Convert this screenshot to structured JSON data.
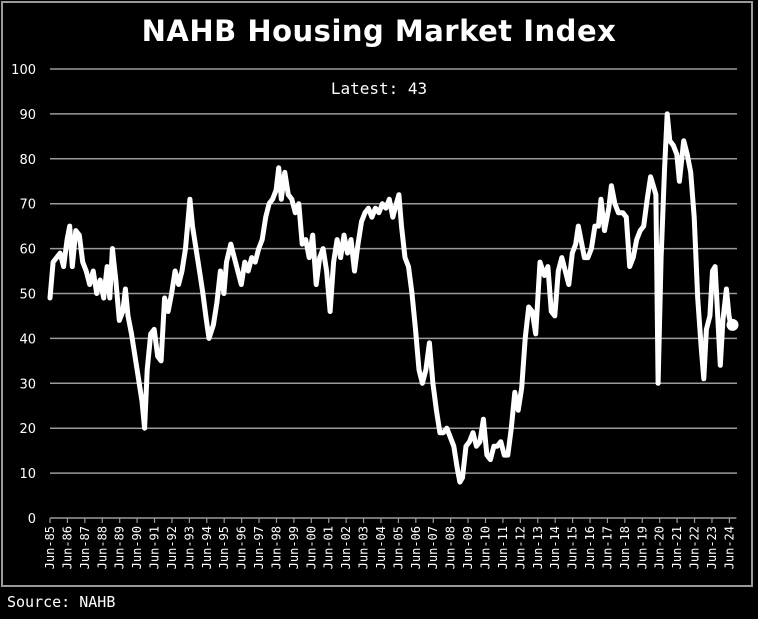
{
  "chart_data": {
    "type": "line",
    "title": "NAHB Housing Market Index",
    "subtitle": "Latest: 43",
    "source": "Source: NAHB",
    "xlabel": "",
    "ylabel": "",
    "ylim": [
      0,
      100
    ],
    "yticks": [
      0,
      10,
      20,
      30,
      40,
      50,
      60,
      70,
      80,
      90,
      100
    ],
    "grid": true,
    "legend": "none",
    "line_color": "#ffffff",
    "background": "#000000",
    "grid_color": "#9a9a9a",
    "xticks": [
      "Jun-85",
      "Jun-86",
      "Jun-87",
      "Jun-88",
      "Jun-89",
      "Jun-90",
      "Jun-91",
      "Jun-92",
      "Jun-93",
      "Jun-94",
      "Jun-95",
      "Jun-96",
      "Jun-97",
      "Jun-98",
      "Jun-99",
      "Jun-00",
      "Jun-01",
      "Jun-02",
      "Jun-03",
      "Jun-04",
      "Jun-05",
      "Jun-06",
      "Jun-07",
      "Jun-08",
      "Jun-09",
      "Jun-10",
      "Jun-11",
      "Jun-12",
      "Jun-13",
      "Jun-14",
      "Jun-15",
      "Jun-16",
      "Jun-17",
      "Jun-18",
      "Jun-19",
      "Jun-20",
      "Jun-21",
      "Jun-22",
      "Jun-23",
      "Jun-24"
    ],
    "x_start_year": 1985.42,
    "series": [
      {
        "name": "NAHB HMI",
        "points": [
          [
            1985.42,
            49
          ],
          [
            1985.6,
            57
          ],
          [
            1985.8,
            58
          ],
          [
            1986.0,
            59
          ],
          [
            1986.2,
            56
          ],
          [
            1986.4,
            62
          ],
          [
            1986.55,
            65
          ],
          [
            1986.7,
            56
          ],
          [
            1986.9,
            64
          ],
          [
            1987.1,
            63
          ],
          [
            1987.3,
            57
          ],
          [
            1987.5,
            55
          ],
          [
            1987.7,
            52
          ],
          [
            1987.9,
            55
          ],
          [
            1988.1,
            50
          ],
          [
            1988.3,
            53
          ],
          [
            1988.5,
            49
          ],
          [
            1988.7,
            56
          ],
          [
            1988.85,
            49
          ],
          [
            1989.0,
            60
          ],
          [
            1989.2,
            53
          ],
          [
            1989.4,
            44
          ],
          [
            1989.6,
            46
          ],
          [
            1989.75,
            51
          ],
          [
            1989.9,
            45
          ],
          [
            1990.1,
            41
          ],
          [
            1990.3,
            36
          ],
          [
            1990.5,
            31
          ],
          [
            1990.7,
            26
          ],
          [
            1990.85,
            20
          ],
          [
            1991.0,
            33
          ],
          [
            1991.2,
            41
          ],
          [
            1991.4,
            42
          ],
          [
            1991.6,
            36
          ],
          [
            1991.8,
            35
          ],
          [
            1992.0,
            49
          ],
          [
            1992.2,
            46
          ],
          [
            1992.4,
            50
          ],
          [
            1992.6,
            55
          ],
          [
            1992.8,
            52
          ],
          [
            1993.0,
            55
          ],
          [
            1993.2,
            60
          ],
          [
            1993.45,
            71
          ],
          [
            1993.6,
            65
          ],
          [
            1993.8,
            60
          ],
          [
            1994.0,
            55
          ],
          [
            1994.2,
            50
          ],
          [
            1994.4,
            44
          ],
          [
            1994.55,
            40
          ],
          [
            1994.8,
            43
          ],
          [
            1995.0,
            48
          ],
          [
            1995.2,
            55
          ],
          [
            1995.4,
            50
          ],
          [
            1995.55,
            57
          ],
          [
            1995.8,
            61
          ],
          [
            1996.0,
            58
          ],
          [
            1996.2,
            55
          ],
          [
            1996.4,
            52
          ],
          [
            1996.6,
            57
          ],
          [
            1996.8,
            55
          ],
          [
            1997.0,
            58
          ],
          [
            1997.2,
            57
          ],
          [
            1997.4,
            60
          ],
          [
            1997.6,
            62
          ],
          [
            1997.8,
            67
          ],
          [
            1998.0,
            70
          ],
          [
            1998.2,
            71
          ],
          [
            1998.4,
            73
          ],
          [
            1998.55,
            78
          ],
          [
            1998.7,
            71
          ],
          [
            1998.9,
            77
          ],
          [
            1999.1,
            72
          ],
          [
            1999.3,
            71
          ],
          [
            1999.5,
            68
          ],
          [
            1999.7,
            70
          ],
          [
            1999.9,
            61
          ],
          [
            2000.1,
            62
          ],
          [
            2000.3,
            58
          ],
          [
            2000.5,
            63
          ],
          [
            2000.7,
            52
          ],
          [
            2000.9,
            58
          ],
          [
            2001.1,
            60
          ],
          [
            2001.3,
            55
          ],
          [
            2001.5,
            46
          ],
          [
            2001.7,
            57
          ],
          [
            2001.9,
            62
          ],
          [
            2002.1,
            58
          ],
          [
            2002.3,
            63
          ],
          [
            2002.5,
            59
          ],
          [
            2002.7,
            62
          ],
          [
            2002.9,
            55
          ],
          [
            2003.1,
            61
          ],
          [
            2003.3,
            66
          ],
          [
            2003.5,
            68
          ],
          [
            2003.7,
            69
          ],
          [
            2003.9,
            67
          ],
          [
            2004.1,
            69
          ],
          [
            2004.3,
            68
          ],
          [
            2004.5,
            70
          ],
          [
            2004.7,
            69
          ],
          [
            2004.9,
            71
          ],
          [
            2005.1,
            67
          ],
          [
            2005.3,
            70
          ],
          [
            2005.45,
            72
          ],
          [
            2005.6,
            65
          ],
          [
            2005.8,
            58
          ],
          [
            2006.0,
            56
          ],
          [
            2006.2,
            50
          ],
          [
            2006.4,
            42
          ],
          [
            2006.6,
            33
          ],
          [
            2006.8,
            30
          ],
          [
            2007.0,
            33
          ],
          [
            2007.2,
            39
          ],
          [
            2007.4,
            30
          ],
          [
            2007.6,
            24
          ],
          [
            2007.8,
            19
          ],
          [
            2008.0,
            19
          ],
          [
            2008.2,
            20
          ],
          [
            2008.4,
            18
          ],
          [
            2008.6,
            16
          ],
          [
            2008.8,
            11
          ],
          [
            2008.95,
            8
          ],
          [
            2009.1,
            9
          ],
          [
            2009.3,
            16
          ],
          [
            2009.5,
            17
          ],
          [
            2009.7,
            19
          ],
          [
            2009.9,
            16
          ],
          [
            2010.1,
            17
          ],
          [
            2010.3,
            22
          ],
          [
            2010.5,
            14
          ],
          [
            2010.7,
            13
          ],
          [
            2010.9,
            16
          ],
          [
            2011.1,
            16
          ],
          [
            2011.3,
            17
          ],
          [
            2011.5,
            14
          ],
          [
            2011.7,
            14
          ],
          [
            2011.9,
            20
          ],
          [
            2012.1,
            28
          ],
          [
            2012.3,
            24
          ],
          [
            2012.5,
            29
          ],
          [
            2012.7,
            40
          ],
          [
            2012.9,
            47
          ],
          [
            2013.1,
            46
          ],
          [
            2013.3,
            41
          ],
          [
            2013.55,
            57
          ],
          [
            2013.8,
            54
          ],
          [
            2014.0,
            56
          ],
          [
            2014.2,
            46
          ],
          [
            2014.4,
            45
          ],
          [
            2014.6,
            55
          ],
          [
            2014.8,
            58
          ],
          [
            2015.0,
            55
          ],
          [
            2015.2,
            52
          ],
          [
            2015.4,
            59
          ],
          [
            2015.6,
            61
          ],
          [
            2015.75,
            65
          ],
          [
            2015.95,
            61
          ],
          [
            2016.1,
            58
          ],
          [
            2016.3,
            58
          ],
          [
            2016.5,
            60
          ],
          [
            2016.7,
            65
          ],
          [
            2016.9,
            65
          ],
          [
            2017.05,
            71
          ],
          [
            2017.25,
            64
          ],
          [
            2017.5,
            69
          ],
          [
            2017.65,
            74
          ],
          [
            2017.85,
            70
          ],
          [
            2018.05,
            68
          ],
          [
            2018.3,
            68
          ],
          [
            2018.5,
            67
          ],
          [
            2018.7,
            56
          ],
          [
            2018.9,
            58
          ],
          [
            2019.1,
            62
          ],
          [
            2019.3,
            64
          ],
          [
            2019.5,
            65
          ],
          [
            2019.7,
            71
          ],
          [
            2019.9,
            76
          ],
          [
            2020.05,
            74
          ],
          [
            2020.2,
            72
          ],
          [
            2020.33,
            30
          ],
          [
            2020.5,
            58
          ],
          [
            2020.7,
            78
          ],
          [
            2020.85,
            90
          ],
          [
            2021.0,
            84
          ],
          [
            2021.2,
            83
          ],
          [
            2021.4,
            81
          ],
          [
            2021.55,
            75
          ],
          [
            2021.8,
            84
          ],
          [
            2022.0,
            81
          ],
          [
            2022.2,
            77
          ],
          [
            2022.4,
            67
          ],
          [
            2022.6,
            49
          ],
          [
            2022.8,
            38
          ],
          [
            2022.95,
            31
          ],
          [
            2023.1,
            42
          ],
          [
            2023.3,
            45
          ],
          [
            2023.45,
            55
          ],
          [
            2023.6,
            56
          ],
          [
            2023.75,
            45
          ],
          [
            2023.9,
            34
          ],
          [
            2024.05,
            44
          ],
          [
            2024.25,
            51
          ],
          [
            2024.4,
            45
          ],
          [
            2024.5,
            43
          ],
          [
            2024.6,
            43
          ]
        ]
      }
    ],
    "latest_value": 43
  }
}
